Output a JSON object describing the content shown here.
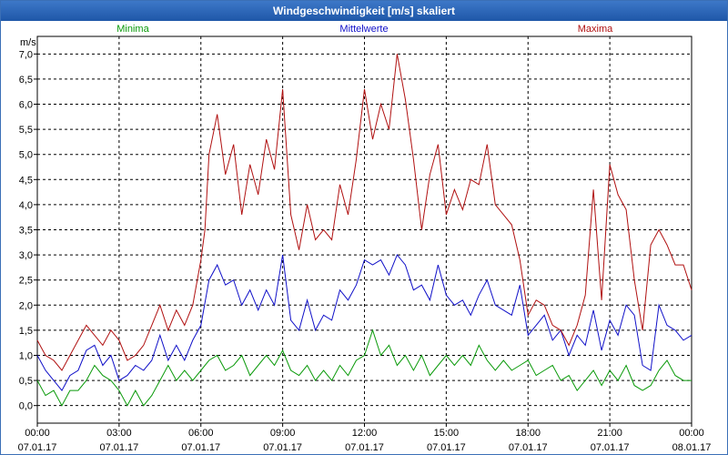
{
  "window": {
    "title": "Windgeschwindigkeit [m/s] skaliert"
  },
  "chart_data": {
    "type": "line",
    "title": "Windgeschwindigkeit [m/s] skaliert",
    "ylabel": "m/s",
    "ylim": [
      -0.35,
      7.35
    ],
    "xlim": [
      0,
      24
    ],
    "grid": true,
    "y_ticks": [
      "0,0",
      "0,5",
      "1,0",
      "1,5",
      "2,0",
      "2,5",
      "3,0",
      "3,5",
      "4,0",
      "4,5",
      "5,0",
      "5,5",
      "6,0",
      "6,5",
      "7,0"
    ],
    "y_tick_values": [
      0,
      0.5,
      1,
      1.5,
      2,
      2.5,
      3,
      3.5,
      4,
      4.5,
      5,
      5.5,
      6,
      6.5,
      7
    ],
    "x_ticks": [
      {
        "time": "00:00",
        "date": "07.01.17",
        "hour": 0
      },
      {
        "time": "03:00",
        "date": "07.01.17",
        "hour": 3
      },
      {
        "time": "06:00",
        "date": "07.01.17",
        "hour": 6
      },
      {
        "time": "09:00",
        "date": "07.01.17",
        "hour": 9
      },
      {
        "time": "12:00",
        "date": "07.01.17",
        "hour": 12
      },
      {
        "time": "15:00",
        "date": "07.01.17",
        "hour": 15
      },
      {
        "time": "18:00",
        "date": "07.01.17",
        "hour": 18
      },
      {
        "time": "21:00",
        "date": "07.01.17",
        "hour": 21
      },
      {
        "time": "00:00",
        "date": "08.01.17",
        "hour": 24
      }
    ],
    "series": [
      {
        "name": "Minima",
        "color": "#0a9a0a",
        "legend_pos": "left",
        "points": [
          [
            0,
            0.5
          ],
          [
            0.3,
            0.2
          ],
          [
            0.6,
            0.3
          ],
          [
            0.9,
            0.0
          ],
          [
            1.2,
            0.3
          ],
          [
            1.5,
            0.3
          ],
          [
            1.8,
            0.5
          ],
          [
            2.1,
            0.8
          ],
          [
            2.4,
            0.6
          ],
          [
            2.7,
            0.5
          ],
          [
            3.0,
            0.3
          ],
          [
            3.3,
            0.0
          ],
          [
            3.6,
            0.3
          ],
          [
            3.9,
            0.0
          ],
          [
            4.2,
            0.2
          ],
          [
            4.5,
            0.5
          ],
          [
            4.8,
            0.8
          ],
          [
            5.1,
            0.5
          ],
          [
            5.4,
            0.7
          ],
          [
            5.7,
            0.5
          ],
          [
            6.0,
            0.7
          ],
          [
            6.3,
            0.9
          ],
          [
            6.6,
            1.0
          ],
          [
            6.9,
            0.7
          ],
          [
            7.2,
            0.8
          ],
          [
            7.5,
            1.0
          ],
          [
            7.8,
            0.6
          ],
          [
            8.1,
            0.8
          ],
          [
            8.4,
            1.0
          ],
          [
            8.7,
            0.8
          ],
          [
            9.0,
            1.1
          ],
          [
            9.3,
            0.7
          ],
          [
            9.6,
            0.6
          ],
          [
            9.9,
            0.8
          ],
          [
            10.2,
            0.5
          ],
          [
            10.5,
            0.7
          ],
          [
            10.8,
            0.5
          ],
          [
            11.1,
            0.8
          ],
          [
            11.4,
            0.6
          ],
          [
            11.7,
            0.9
          ],
          [
            12.0,
            1.0
          ],
          [
            12.3,
            1.5
          ],
          [
            12.6,
            1.0
          ],
          [
            12.9,
            1.2
          ],
          [
            13.2,
            0.8
          ],
          [
            13.5,
            1.0
          ],
          [
            13.8,
            0.7
          ],
          [
            14.1,
            1.0
          ],
          [
            14.4,
            0.6
          ],
          [
            14.7,
            0.8
          ],
          [
            15.0,
            1.0
          ],
          [
            15.3,
            0.8
          ],
          [
            15.6,
            1.0
          ],
          [
            15.9,
            0.8
          ],
          [
            16.2,
            1.2
          ],
          [
            16.5,
            0.9
          ],
          [
            16.8,
            0.7
          ],
          [
            17.1,
            0.9
          ],
          [
            17.4,
            0.7
          ],
          [
            17.7,
            0.8
          ],
          [
            18.0,
            0.9
          ],
          [
            18.3,
            0.6
          ],
          [
            18.6,
            0.7
          ],
          [
            18.9,
            0.8
          ],
          [
            19.2,
            0.5
          ],
          [
            19.5,
            0.6
          ],
          [
            19.8,
            0.3
          ],
          [
            20.1,
            0.5
          ],
          [
            20.4,
            0.7
          ],
          [
            20.7,
            0.4
          ],
          [
            21.0,
            0.7
          ],
          [
            21.3,
            0.5
          ],
          [
            21.6,
            0.8
          ],
          [
            21.9,
            0.4
          ],
          [
            22.2,
            0.3
          ],
          [
            22.5,
            0.4
          ],
          [
            22.8,
            0.7
          ],
          [
            23.1,
            0.9
          ],
          [
            23.4,
            0.6
          ],
          [
            23.7,
            0.5
          ],
          [
            24.0,
            0.5
          ]
        ]
      },
      {
        "name": "Mittelwerte",
        "color": "#1010c8",
        "legend_pos": "center",
        "points": [
          [
            0,
            1.0
          ],
          [
            0.3,
            0.7
          ],
          [
            0.6,
            0.5
          ],
          [
            0.9,
            0.3
          ],
          [
            1.2,
            0.6
          ],
          [
            1.5,
            0.7
          ],
          [
            1.8,
            1.1
          ],
          [
            2.1,
            1.2
          ],
          [
            2.4,
            0.8
          ],
          [
            2.7,
            1.0
          ],
          [
            3.0,
            0.5
          ],
          [
            3.3,
            0.6
          ],
          [
            3.6,
            0.8
          ],
          [
            3.9,
            0.7
          ],
          [
            4.2,
            0.9
          ],
          [
            4.5,
            1.4
          ],
          [
            4.8,
            0.9
          ],
          [
            5.1,
            1.2
          ],
          [
            5.4,
            0.9
          ],
          [
            5.7,
            1.3
          ],
          [
            6.0,
            1.6
          ],
          [
            6.3,
            2.5
          ],
          [
            6.6,
            2.8
          ],
          [
            6.9,
            2.4
          ],
          [
            7.2,
            2.5
          ],
          [
            7.5,
            2.0
          ],
          [
            7.8,
            2.3
          ],
          [
            8.1,
            1.9
          ],
          [
            8.4,
            2.3
          ],
          [
            8.7,
            2.0
          ],
          [
            9.0,
            3.0
          ],
          [
            9.3,
            1.7
          ],
          [
            9.6,
            1.5
          ],
          [
            9.9,
            2.1
          ],
          [
            10.2,
            1.5
          ],
          [
            10.5,
            1.8
          ],
          [
            10.8,
            1.7
          ],
          [
            11.1,
            2.3
          ],
          [
            11.4,
            2.1
          ],
          [
            11.7,
            2.4
          ],
          [
            12.0,
            2.9
          ],
          [
            12.3,
            2.8
          ],
          [
            12.6,
            2.9
          ],
          [
            12.9,
            2.6
          ],
          [
            13.2,
            3.0
          ],
          [
            13.5,
            2.8
          ],
          [
            13.8,
            2.3
          ],
          [
            14.1,
            2.4
          ],
          [
            14.4,
            2.1
          ],
          [
            14.7,
            2.8
          ],
          [
            15.0,
            2.2
          ],
          [
            15.3,
            2.0
          ],
          [
            15.6,
            2.1
          ],
          [
            15.9,
            1.8
          ],
          [
            16.2,
            2.2
          ],
          [
            16.5,
            2.5
          ],
          [
            16.8,
            2.0
          ],
          [
            17.1,
            1.9
          ],
          [
            17.4,
            1.8
          ],
          [
            17.7,
            2.4
          ],
          [
            18.0,
            1.4
          ],
          [
            18.3,
            1.6
          ],
          [
            18.6,
            1.8
          ],
          [
            18.9,
            1.3
          ],
          [
            19.2,
            1.5
          ],
          [
            19.5,
            1.0
          ],
          [
            19.8,
            1.4
          ],
          [
            20.1,
            1.2
          ],
          [
            20.4,
            1.9
          ],
          [
            20.7,
            1.1
          ],
          [
            21.0,
            1.7
          ],
          [
            21.3,
            1.4
          ],
          [
            21.6,
            2.0
          ],
          [
            21.9,
            1.8
          ],
          [
            22.2,
            0.8
          ],
          [
            22.5,
            0.7
          ],
          [
            22.8,
            2.0
          ],
          [
            23.1,
            1.6
          ],
          [
            23.4,
            1.5
          ],
          [
            23.7,
            1.3
          ],
          [
            24.0,
            1.4
          ]
        ]
      },
      {
        "name": "Maxima",
        "color": "#b01010",
        "legend_pos": "right",
        "points": [
          [
            0,
            1.3
          ],
          [
            0.3,
            1.0
          ],
          [
            0.6,
            0.9
          ],
          [
            0.9,
            0.7
          ],
          [
            1.2,
            1.0
          ],
          [
            1.5,
            1.3
          ],
          [
            1.8,
            1.6
          ],
          [
            2.1,
            1.4
          ],
          [
            2.4,
            1.2
          ],
          [
            2.7,
            1.5
          ],
          [
            3.0,
            1.3
          ],
          [
            3.3,
            0.9
          ],
          [
            3.6,
            1.0
          ],
          [
            3.9,
            1.2
          ],
          [
            4.2,
            1.6
          ],
          [
            4.5,
            2.0
          ],
          [
            4.8,
            1.5
          ],
          [
            5.1,
            1.9
          ],
          [
            5.4,
            1.6
          ],
          [
            5.7,
            2.0
          ],
          [
            6.0,
            2.9
          ],
          [
            6.15,
            3.5
          ],
          [
            6.3,
            5.0
          ],
          [
            6.6,
            5.8
          ],
          [
            6.9,
            4.6
          ],
          [
            7.2,
            5.2
          ],
          [
            7.5,
            3.8
          ],
          [
            7.8,
            4.8
          ],
          [
            8.1,
            4.2
          ],
          [
            8.4,
            5.3
          ],
          [
            8.7,
            4.7
          ],
          [
            9.0,
            6.3
          ],
          [
            9.3,
            3.8
          ],
          [
            9.6,
            3.1
          ],
          [
            9.9,
            4.0
          ],
          [
            10.2,
            3.3
          ],
          [
            10.5,
            3.5
          ],
          [
            10.8,
            3.3
          ],
          [
            11.1,
            4.4
          ],
          [
            11.4,
            3.8
          ],
          [
            11.7,
            4.9
          ],
          [
            12.0,
            6.3
          ],
          [
            12.3,
            5.3
          ],
          [
            12.6,
            6.0
          ],
          [
            12.9,
            5.5
          ],
          [
            13.2,
            7.0
          ],
          [
            13.5,
            6.1
          ],
          [
            13.8,
            4.9
          ],
          [
            14.1,
            3.5
          ],
          [
            14.4,
            4.6
          ],
          [
            14.7,
            5.2
          ],
          [
            15.0,
            3.8
          ],
          [
            15.3,
            4.3
          ],
          [
            15.6,
            3.9
          ],
          [
            15.9,
            4.5
          ],
          [
            16.2,
            4.4
          ],
          [
            16.5,
            5.2
          ],
          [
            16.8,
            4.0
          ],
          [
            17.1,
            3.8
          ],
          [
            17.4,
            3.6
          ],
          [
            17.7,
            2.9
          ],
          [
            18.0,
            1.8
          ],
          [
            18.3,
            2.1
          ],
          [
            18.6,
            2.0
          ],
          [
            18.9,
            1.6
          ],
          [
            19.2,
            1.5
          ],
          [
            19.5,
            1.2
          ],
          [
            19.8,
            1.6
          ],
          [
            20.1,
            2.2
          ],
          [
            20.4,
            4.3
          ],
          [
            20.7,
            2.1
          ],
          [
            21.0,
            4.8
          ],
          [
            21.3,
            4.2
          ],
          [
            21.6,
            3.9
          ],
          [
            21.9,
            2.5
          ],
          [
            22.2,
            1.5
          ],
          [
            22.5,
            3.2
          ],
          [
            22.8,
            3.5
          ],
          [
            23.1,
            3.2
          ],
          [
            23.4,
            2.8
          ],
          [
            23.7,
            2.8
          ],
          [
            24.0,
            2.3
          ]
        ]
      }
    ]
  }
}
